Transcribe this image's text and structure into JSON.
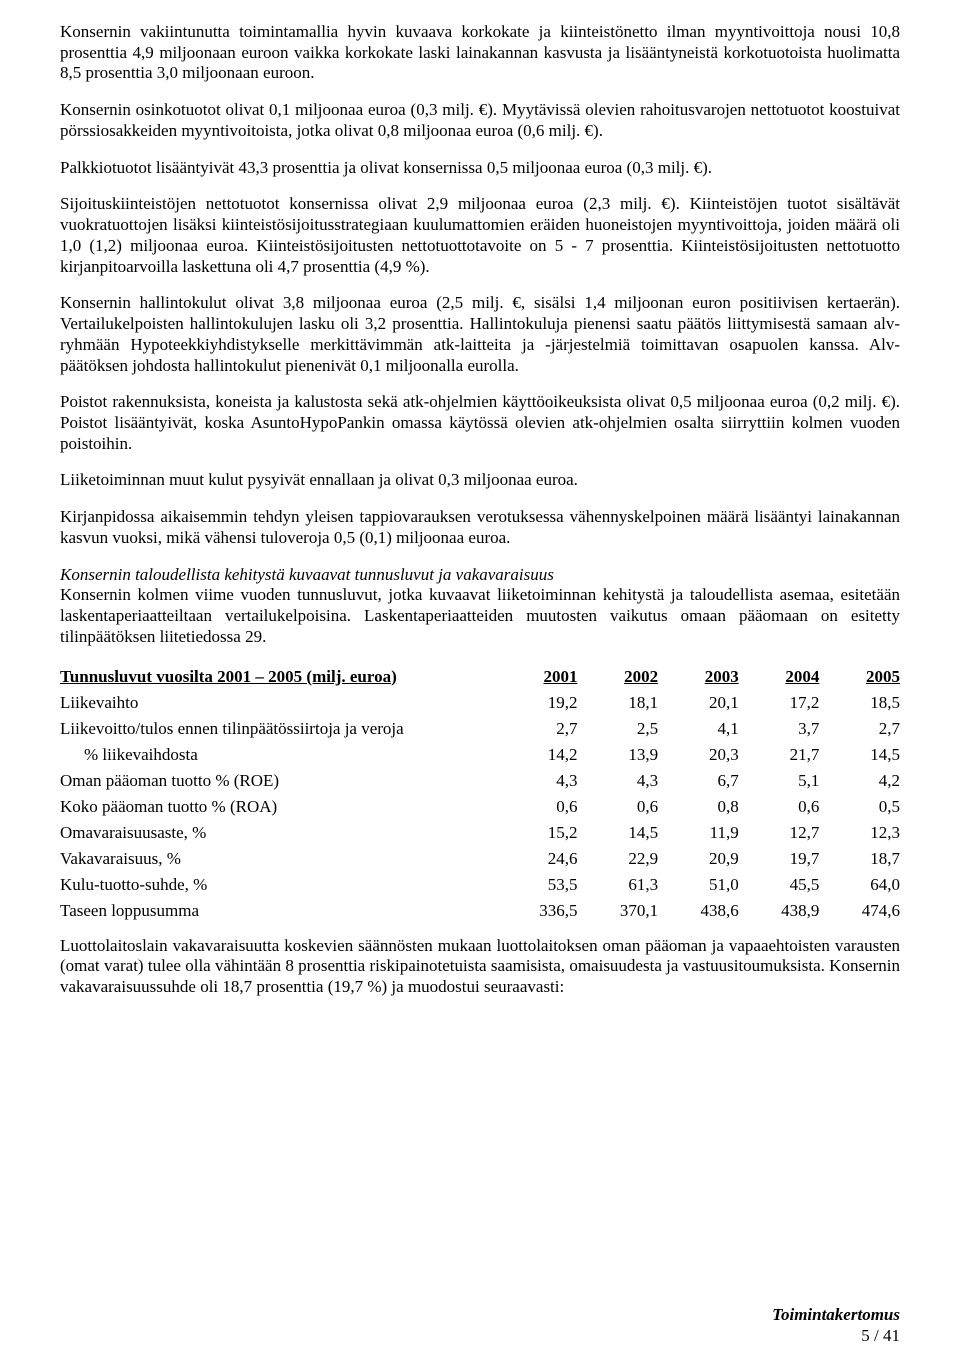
{
  "paragraphs": {
    "p1": "Konsernin vakiintunutta toimintamallia hyvin kuvaava korkokate ja kiinteistönetto ilman myyntivoittoja nousi 10,8 prosenttia 4,9 miljoonaan euroon vaikka korkokate laski lainakannan kasvusta ja lisääntyneistä korkotuotoista huolimatta 8,5 prosenttia 3,0 miljoonaan euroon.",
    "p2": "Konsernin osinkotuotot olivat 0,1 miljoonaa euroa (0,3 milj. €). Myytävissä olevien rahoitusvarojen nettotuotot koostuivat pörssiosakkeiden myyntivoitoista, jotka olivat 0,8 miljoonaa euroa (0,6 milj. €).",
    "p3": "Palkkiotuotot lisääntyivät 43,3 prosenttia ja olivat konsernissa 0,5 miljoonaa euroa (0,3 milj. €).",
    "p4": "Sijoituskiinteistöjen nettotuotot konsernissa olivat 2,9 miljoonaa euroa (2,3 milj. €). Kiinteistöjen tuotot sisältävät vuokratuottojen lisäksi kiinteistösijoitusstrategiaan kuulumattomien eräiden huoneistojen myyntivoittoja, joiden määrä oli 1,0 (1,2) miljoonaa euroa. Kiinteistösijoitusten nettotuottotavoite on 5 - 7 prosenttia. Kiinteistösijoitusten nettotuotto kirjanpitoarvoilla laskettuna oli 4,7 prosenttia (4,9 %).",
    "p5": "Konsernin hallintokulut olivat 3,8 miljoonaa euroa (2,5 milj. €, sisälsi 1,4 miljoonan euron positiivisen kertaerän). Vertailukelpoisten hallintokulujen lasku oli 3,2 prosenttia. Hallintokuluja pienensi saatu päätös liittymisestä samaan alv-ryhmään Hypoteekkiyhdistykselle merkittävimmän atk-laitteita ja -järjestelmiä toimittavan osapuolen kanssa. Alv-päätöksen johdosta hallintokulut pienenivät 0,1 miljoonalla eurolla.",
    "p6": "Poistot rakennuksista, koneista ja kalustosta sekä atk-ohjelmien käyttöoikeuksista olivat 0,5 miljoonaa euroa (0,2 milj. €). Poistot lisääntyivät, koska AsuntoHypoPankin omassa käytössä olevien atk-ohjelmien osalta siirryttiin kolmen vuoden poistoihin.",
    "p7": "Liiketoiminnan muut kulut pysyivät ennallaan ja olivat 0,3 miljoonaa euroa.",
    "p8": "Kirjanpidossa aikaisemmin tehdyn yleisen tappiovarauksen verotuksessa vähennyskelpoinen määrä lisääntyi lainakannan kasvun vuoksi, mikä vähensi tuloveroja 0,5 (0,1) miljoonaa euroa.",
    "p9_heading": "Konsernin taloudellista kehitystä kuvaavat tunnusluvut ja vakavaraisuus",
    "p9_body": "Konsernin kolmen viime vuoden tunnusluvut, jotka kuvaavat liiketoiminnan kehitystä ja taloudellista asemaa, esitetään laskentaperiaatteiltaan vertailukelpoisina. Laskentaperiaatteiden muutosten vaikutus omaan pääomaan on esitetty tilinpäätöksen liitetiedossa 29.",
    "p10": "Luottolaitoslain vakavaraisuutta koskevien säännösten mukaan luottolaitoksen oman pääoman ja vapaaehtoisten varausten (omat varat) tulee olla vähintään 8 prosenttia riskipainotetuista saamisista, omaisuudesta ja vastuusitoumuksista. Konsernin vakavaraisuussuhde oli 18,7 prosenttia (19,7 %) ja muodostui seuraavasti:"
  },
  "table": {
    "header_label": "Tunnusluvut vuosilta 2001 – 2005 (milj. euroa)",
    "years": [
      "2001",
      "2002",
      "2003",
      "2004",
      "2005"
    ],
    "rows": [
      {
        "label": "Liikevaihto",
        "indent": false,
        "vals": [
          "19,2",
          "18,1",
          "20,1",
          "17,2",
          "18,5"
        ]
      },
      {
        "label": "Liikevoitto/tulos ennen tilinpäätössiirtoja ja veroja",
        "indent": false,
        "vals": [
          "2,7",
          "2,5",
          "4,1",
          "3,7",
          "2,7"
        ]
      },
      {
        "label": "% liikevaihdosta",
        "indent": true,
        "vals": [
          "14,2",
          "13,9",
          "20,3",
          "21,7",
          "14,5"
        ]
      },
      {
        "label": "Oman pääoman tuotto % (ROE)",
        "indent": false,
        "vals": [
          "4,3",
          "4,3",
          "6,7",
          "5,1",
          "4,2"
        ]
      },
      {
        "label": "Koko pääoman tuotto % (ROA)",
        "indent": false,
        "vals": [
          "0,6",
          "0,6",
          "0,8",
          "0,6",
          "0,5"
        ]
      },
      {
        "label": "Omavaraisuusaste, %",
        "indent": false,
        "vals": [
          "15,2",
          "14,5",
          "11,9",
          "12,7",
          "12,3"
        ]
      },
      {
        "label": "Vakavaraisuus, %",
        "indent": false,
        "vals": [
          "24,6",
          "22,9",
          "20,9",
          "19,7",
          "18,7"
        ]
      },
      {
        "label": "Kulu-tuotto-suhde, %",
        "indent": false,
        "vals": [
          "53,5",
          "61,3",
          "51,0",
          "45,5",
          "64,0"
        ]
      },
      {
        "label": "Taseen loppusumma",
        "indent": false,
        "vals": [
          "336,5",
          "370,1",
          "438,6",
          "438,9",
          "474,6"
        ]
      }
    ]
  },
  "footer": {
    "title": "Toimintakertomus",
    "page": "5 / 41"
  }
}
